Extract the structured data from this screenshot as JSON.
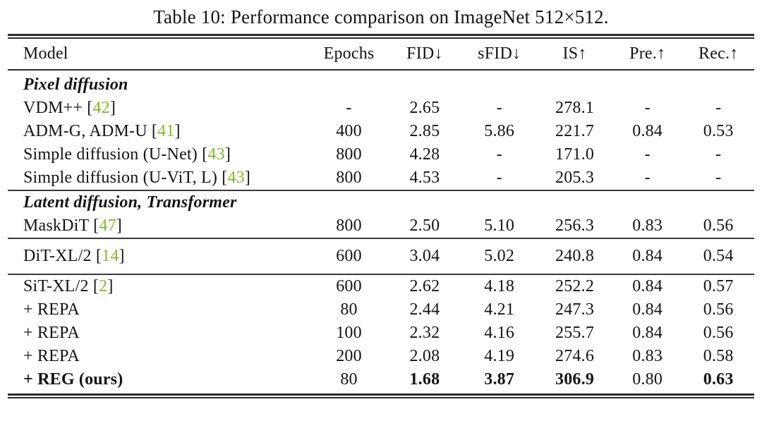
{
  "caption": "Table 10: Performance comparison on ImageNet 512×512.",
  "colors": {
    "citation": "#82b926",
    "text": "#141414",
    "rule": "#2b2b2b",
    "background": "#ffffff"
  },
  "table": {
    "columns": [
      "Model",
      "Epochs",
      "FID↓",
      "sFID↓",
      "IS↑",
      "Pre.↑",
      "Rec.↑"
    ],
    "groups": [
      {
        "section": "Pixel diffusion",
        "rows": [
          {
            "model": "VDM++",
            "cite": "42",
            "values": [
              "-",
              "2.65",
              "-",
              "278.1",
              "-",
              "-"
            ]
          },
          {
            "model": "ADM-G, ADM-U",
            "cite": "41",
            "values": [
              "400",
              "2.85",
              "5.86",
              "221.7",
              "0.84",
              "0.53"
            ]
          },
          {
            "model": "Simple diffusion (U-Net)",
            "cite": "43",
            "values": [
              "800",
              "4.28",
              "-",
              "171.0",
              "-",
              "-"
            ]
          },
          {
            "model": "Simple diffusion (U-ViT, L)",
            "cite": "43",
            "values": [
              "800",
              "4.53",
              "-",
              "205.3",
              "-",
              "-"
            ]
          }
        ]
      },
      {
        "section": "Latent diffusion, Transformer",
        "rows": [
          {
            "model": "MaskDiT",
            "cite": "47",
            "values": [
              "800",
              "2.50",
              "5.10",
              "256.3",
              "0.83",
              "0.56"
            ]
          }
        ]
      },
      {
        "section": null,
        "rows": [
          {
            "model": "DiT-XL/2",
            "cite": "14",
            "values": [
              "600",
              "3.04",
              "5.02",
              "240.8",
              "0.84",
              "0.54"
            ]
          }
        ]
      },
      {
        "section": null,
        "rows": [
          {
            "model": "SiT-XL/2",
            "cite": "2",
            "values": [
              "600",
              "2.62",
              "4.18",
              "252.2",
              "0.84",
              "0.57"
            ]
          },
          {
            "model": "+ REPA",
            "cite": null,
            "values": [
              "80",
              "2.44",
              "4.21",
              "247.3",
              "0.84",
              "0.56"
            ]
          },
          {
            "model": "+ REPA",
            "cite": null,
            "values": [
              "100",
              "2.32",
              "4.16",
              "255.7",
              "0.84",
              "0.56"
            ]
          },
          {
            "model": "+ REPA",
            "cite": null,
            "values": [
              "200",
              "2.08",
              "4.19",
              "274.6",
              "0.83",
              "0.58"
            ]
          },
          {
            "model": "+ REG (ours)",
            "cite": null,
            "bold_model": true,
            "values": [
              "80",
              "1.68",
              "3.87",
              "306.9",
              "0.80",
              "0.63"
            ],
            "bold_values": [
              false,
              true,
              true,
              true,
              false,
              true
            ]
          }
        ]
      }
    ]
  }
}
